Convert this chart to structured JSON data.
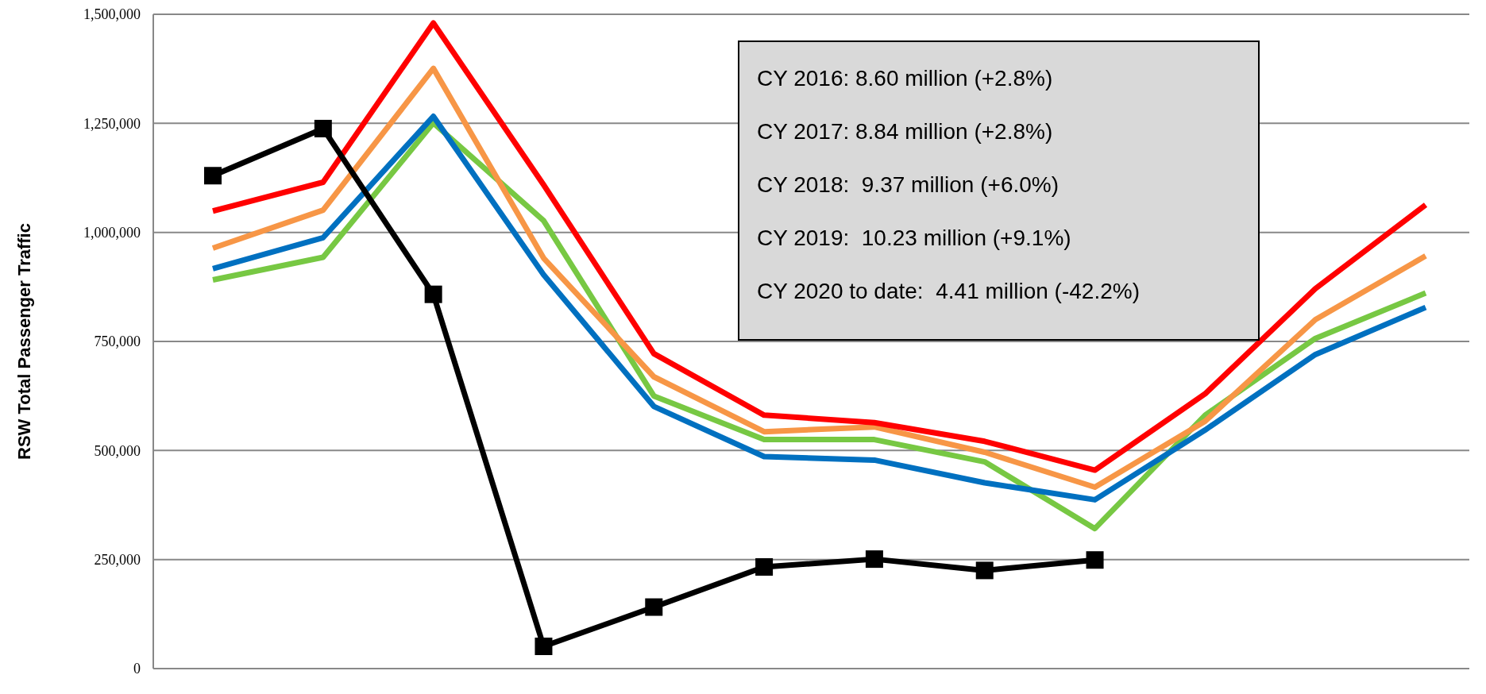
{
  "chart_data": {
    "type": "line",
    "ylabel": "RSW Total Passenger Traffic",
    "categories": [
      null,
      null,
      null,
      null,
      null,
      null,
      null,
      null,
      null,
      null,
      null,
      null
    ],
    "ylim": [
      0,
      1500000
    ],
    "yticks": [
      {
        "value": 0,
        "label": "0"
      },
      {
        "value": 250000,
        "label": "250,000"
      },
      {
        "value": 500000,
        "label": "500,000"
      },
      {
        "value": 750000,
        "label": "750,000"
      },
      {
        "value": 1000000,
        "label": "1,000,000"
      },
      {
        "value": 1250000,
        "label": "1,250,000"
      },
      {
        "value": 1500000,
        "label": "1,500,000"
      }
    ],
    "grid": "y",
    "marker": "none",
    "line_style": "solid",
    "series": [
      {
        "color": "#77c843",
        "values": [
          891000,
          943000,
          1251000,
          1027000,
          625000,
          525000,
          525000,
          474000,
          321000,
          581000,
          757000,
          861000
        ]
      },
      {
        "color": "#0070c0",
        "values": [
          917000,
          988000,
          1266000,
          903000,
          601000,
          486000,
          478000,
          426000,
          387000,
          547000,
          720000,
          828000
        ]
      },
      {
        "color": "#f79646",
        "values": [
          964000,
          1051000,
          1376000,
          941000,
          669000,
          543000,
          554000,
          496000,
          416000,
          567000,
          800000,
          946000
        ]
      },
      {
        "color": "#ff0000",
        "values": [
          1049000,
          1115000,
          1480000,
          1109000,
          722000,
          581000,
          564000,
          521000,
          455000,
          630000,
          871000,
          1063000
        ]
      },
      {
        "color": "#000000",
        "marker": "square",
        "values": [
          1130000,
          1238000,
          858000,
          51000,
          141000,
          233000,
          251000,
          225000,
          249000,
          null,
          null,
          null
        ]
      }
    ],
    "annotations": [
      "CY 2016: 8.60 million (+2.8%)",
      "CY 2017: 8.84 million (+2.8%)",
      "CY 2018:  9.37 million (+6.0%)",
      "CY 2019:  10.23 million (+9.1%)",
      "CY 2020 to date:  4.41 million (-42.2%)"
    ]
  }
}
